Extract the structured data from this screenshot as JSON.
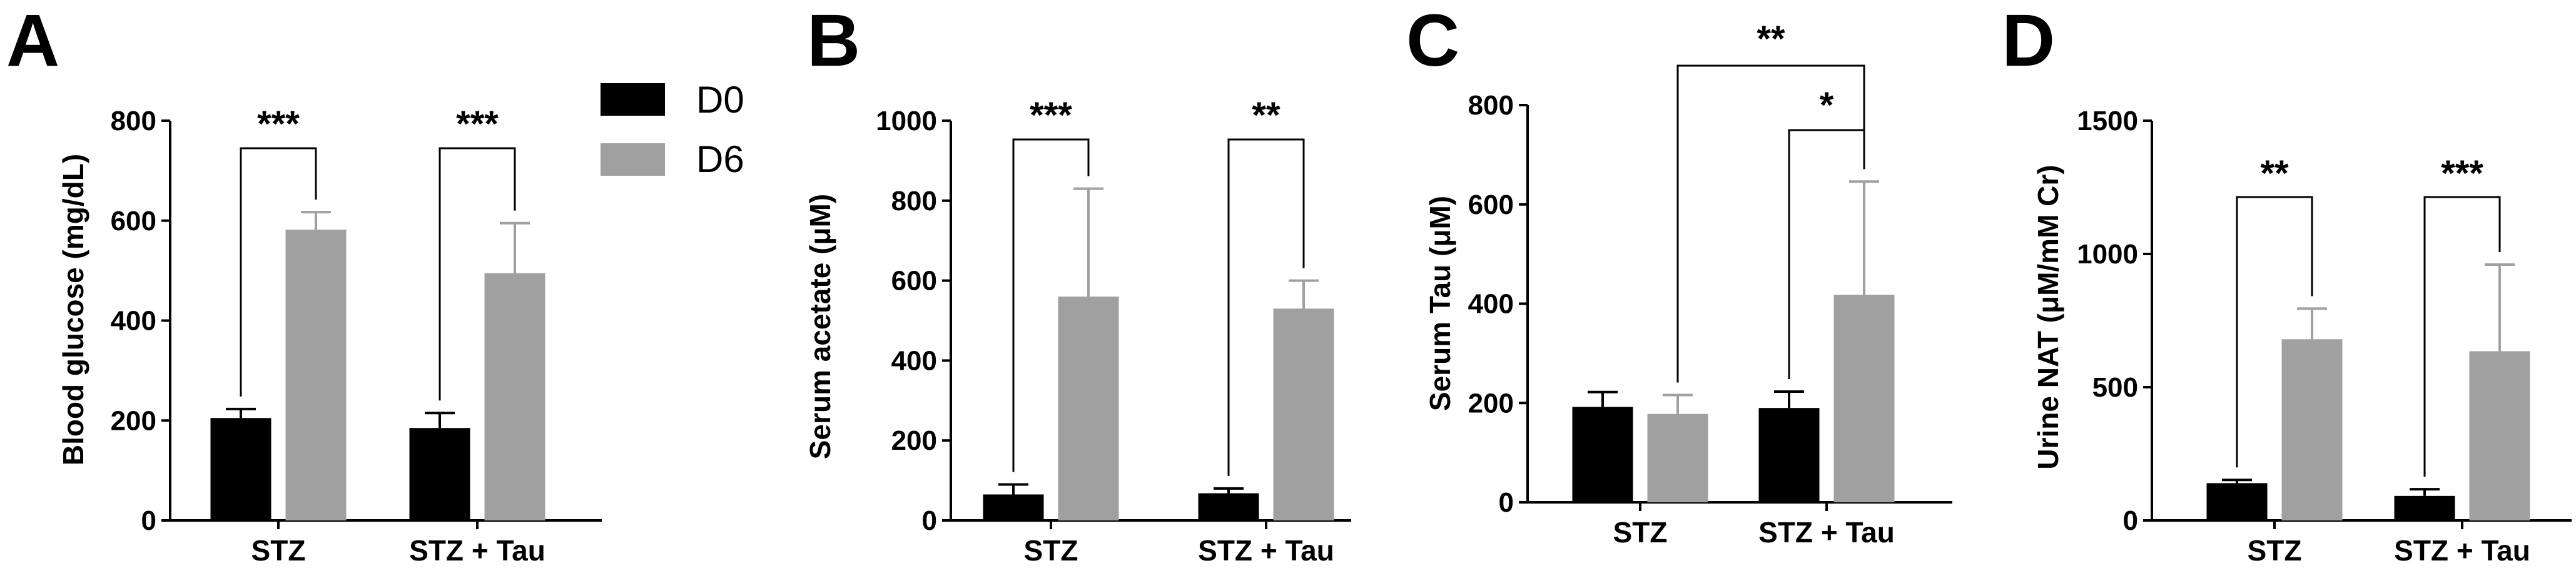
{
  "colors": {
    "d0": "#000000",
    "d6": "#a0a0a0",
    "axis": "#000000"
  },
  "legend": [
    {
      "label": "D0",
      "color": "#000000"
    },
    {
      "label": "D6",
      "color": "#a0a0a0"
    }
  ],
  "chart_data": [
    {
      "type": "bar",
      "panel": "A",
      "title": "",
      "xlabel": "",
      "ylabel": "Blood glucose  (mg/dL)",
      "categories": [
        "STZ",
        "STZ + Tau"
      ],
      "ylim": [
        0,
        800
      ],
      "ticks": [
        0,
        200,
        400,
        600,
        800
      ],
      "series": [
        {
          "name": "D0",
          "values": [
            205,
            185
          ],
          "errors": [
            18,
            30
          ]
        },
        {
          "name": "D6",
          "values": [
            582,
            495
          ],
          "errors": [
            35,
            100
          ]
        }
      ],
      "significance": [
        {
          "label": "***",
          "from": [
            0,
            0
          ],
          "to": [
            0,
            1
          ]
        },
        {
          "label": "***",
          "from": [
            1,
            0
          ],
          "to": [
            1,
            1
          ]
        }
      ]
    },
    {
      "type": "bar",
      "panel": "B",
      "title": "",
      "xlabel": "",
      "ylabel": "Serum acetate (μM)",
      "categories": [
        "STZ",
        "STZ + Tau"
      ],
      "ylim": [
        0,
        1000
      ],
      "ticks": [
        0,
        200,
        400,
        600,
        800,
        1000
      ],
      "series": [
        {
          "name": "D0",
          "values": [
            65,
            68
          ],
          "errors": [
            25,
            12
          ]
        },
        {
          "name": "D6",
          "values": [
            560,
            530
          ],
          "errors": [
            270,
            70
          ]
        }
      ],
      "significance": [
        {
          "label": "***",
          "from": [
            0,
            0
          ],
          "to": [
            0,
            1
          ]
        },
        {
          "label": "**",
          "from": [
            1,
            0
          ],
          "to": [
            1,
            1
          ]
        }
      ]
    },
    {
      "type": "bar",
      "panel": "C",
      "title": "",
      "xlabel": "",
      "ylabel": "Serum Tau (μM)",
      "categories": [
        "STZ",
        "STZ + Tau"
      ],
      "ylim": [
        0,
        800
      ],
      "ticks": [
        0,
        200,
        400,
        600,
        800
      ],
      "series": [
        {
          "name": "D0",
          "values": [
            192,
            190
          ],
          "errors": [
            30,
            33
          ]
        },
        {
          "name": "D6",
          "values": [
            178,
            418
          ],
          "errors": [
            38,
            228
          ]
        }
      ],
      "significance": [
        {
          "label": "**",
          "from": [
            0,
            1
          ],
          "to": [
            1,
            1
          ]
        },
        {
          "label": "*",
          "from": [
            1,
            0
          ],
          "to": [
            1,
            1
          ]
        }
      ]
    },
    {
      "type": "bar",
      "panel": "D",
      "title": "",
      "xlabel": "",
      "ylabel": "Urine NAT (μM/mM Cr)",
      "categories": [
        "STZ",
        "STZ + Tau"
      ],
      "ylim": [
        0,
        1500
      ],
      "ticks": [
        0,
        500,
        1000,
        1500
      ],
      "series": [
        {
          "name": "D0",
          "values": [
            140,
            92
          ],
          "errors": [
            12,
            25
          ]
        },
        {
          "name": "D6",
          "values": [
            680,
            635
          ],
          "errors": [
            115,
            325
          ]
        }
      ],
      "significance": [
        {
          "label": "**",
          "from": [
            0,
            0
          ],
          "to": [
            0,
            1
          ]
        },
        {
          "label": "***",
          "from": [
            1,
            0
          ],
          "to": [
            1,
            1
          ]
        }
      ]
    }
  ]
}
